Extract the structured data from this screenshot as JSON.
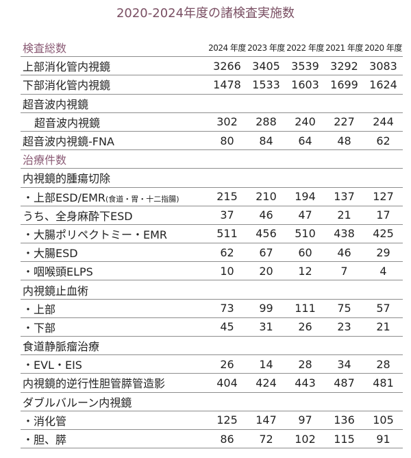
{
  "title": "2020-2024年度の諸検査実施数",
  "header": {
    "section": "検査総数",
    "years": [
      "2024 年度",
      "2023 年度",
      "2022 年度",
      "2021 年度",
      "2020 年度"
    ]
  },
  "rows": [
    {
      "label": "上部消化管内視鏡",
      "values": [
        "3266",
        "3405",
        "3539",
        "3292",
        "3083"
      ]
    },
    {
      "label": "下部消化管内視鏡",
      "values": [
        "1478",
        "1533",
        "1603",
        "1699",
        "1624"
      ]
    },
    {
      "label": "超音波内視鏡",
      "values": []
    },
    {
      "label": "超音波内視鏡",
      "indent": true,
      "values": [
        "302",
        "288",
        "240",
        "227",
        "244"
      ]
    },
    {
      "label": "超音波内視鏡-FNA",
      "values": [
        "80",
        "84",
        "64",
        "48",
        "62"
      ]
    },
    {
      "label": "治療件数",
      "section": true,
      "values": []
    },
    {
      "label": "内視鏡的腫瘍切除",
      "values": []
    },
    {
      "label": "・上部ESD/EMR",
      "suffix": "(食道・胃・十二指腸)",
      "values": [
        "215",
        "210",
        "194",
        "137",
        "127"
      ]
    },
    {
      "label": "うち、全身麻酔下ESD",
      "values": [
        "37",
        "46",
        "47",
        "21",
        "17"
      ]
    },
    {
      "label": "・大腸ポリペクトミー・EMR",
      "values": [
        "511",
        "456",
        "510",
        "438",
        "425"
      ]
    },
    {
      "label": "・大腸ESD",
      "values": [
        "62",
        "67",
        "60",
        "46",
        "29"
      ]
    },
    {
      "label": "・咽喉頭ELPS",
      "values": [
        "10",
        "20",
        "12",
        "7",
        "4"
      ]
    },
    {
      "label": "内視鏡止血術",
      "values": []
    },
    {
      "label": "・上部",
      "values": [
        "73",
        "99",
        "111",
        "75",
        "57"
      ]
    },
    {
      "label": "・下部",
      "values": [
        "45",
        "31",
        "26",
        "23",
        "21"
      ]
    },
    {
      "label": "食道静脈瘤治療",
      "values": []
    },
    {
      "label": "・EVL・EIS",
      "values": [
        "26",
        "14",
        "28",
        "34",
        "28"
      ]
    },
    {
      "label": "内視鏡的逆行性胆管膵管造影",
      "values": [
        "404",
        "424",
        "443",
        "487",
        "481"
      ]
    },
    {
      "label": "ダブルバルーン内視鏡",
      "values": []
    },
    {
      "label": "・消化管",
      "values": [
        "125",
        "147",
        "97",
        "136",
        "105"
      ]
    },
    {
      "label": "・胆、膵",
      "values": [
        "86",
        "72",
        "102",
        "115",
        "91"
      ]
    }
  ],
  "colors": {
    "accent": "#8a5a74",
    "rule": "#8c8c8c"
  }
}
